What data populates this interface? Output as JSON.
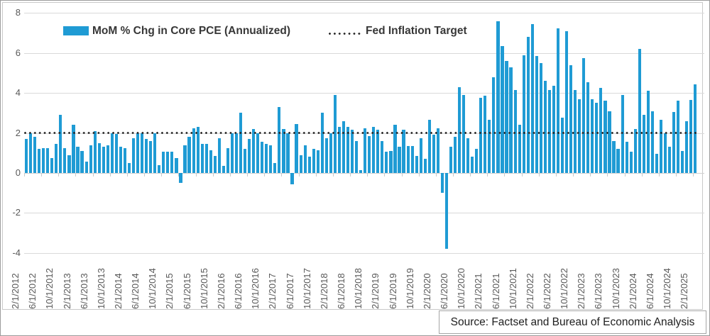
{
  "legend": {
    "series_label": "MoM % Chg in Core PCE (Annualized)",
    "target_label": "Fed Inflation Target"
  },
  "source": {
    "text": "Source: Factset and Bureau of Economic Analysis"
  },
  "chart_data": {
    "type": "bar",
    "title": "",
    "xlabel": "",
    "ylabel": "",
    "ylim": [
      -4,
      8
    ],
    "yticks": [
      8,
      6,
      4,
      2,
      0,
      -2,
      -4
    ],
    "grid": "horizontal",
    "legend_position": "top",
    "bar_color": "#1f9bd4",
    "target_color": "#262626",
    "axis_label_color": "#595959",
    "target_value": 2,
    "xtick_every": 4,
    "x": [
      "2/1/2012",
      "3/1/2012",
      "4/1/2012",
      "5/1/2012",
      "6/1/2012",
      "7/1/2012",
      "8/1/2012",
      "9/1/2012",
      "10/1/2012",
      "11/1/2012",
      "12/1/2012",
      "1/1/2013",
      "2/1/2013",
      "3/1/2013",
      "4/1/2013",
      "5/1/2013",
      "6/1/2013",
      "7/1/2013",
      "8/1/2013",
      "9/1/2013",
      "10/1/2013",
      "11/1/2013",
      "12/1/2013",
      "1/1/2014",
      "2/1/2014",
      "3/1/2014",
      "4/1/2014",
      "5/1/2014",
      "6/1/2014",
      "7/1/2014",
      "8/1/2014",
      "9/1/2014",
      "10/1/2014",
      "11/1/2014",
      "12/1/2014",
      "1/1/2015",
      "2/1/2015",
      "3/1/2015",
      "4/1/2015",
      "5/1/2015",
      "6/1/2015",
      "7/1/2015",
      "8/1/2015",
      "9/1/2015",
      "10/1/2015",
      "11/1/2015",
      "12/1/2015",
      "1/1/2016",
      "2/1/2016",
      "3/1/2016",
      "4/1/2016",
      "5/1/2016",
      "6/1/2016",
      "7/1/2016",
      "8/1/2016",
      "9/1/2016",
      "10/1/2016",
      "11/1/2016",
      "12/1/2016",
      "1/1/2017",
      "2/1/2017",
      "3/1/2017",
      "4/1/2017",
      "5/1/2017",
      "6/1/2017",
      "7/1/2017",
      "8/1/2017",
      "9/1/2017",
      "10/1/2017",
      "11/1/2017",
      "12/1/2017",
      "1/1/2018",
      "2/1/2018",
      "3/1/2018",
      "4/1/2018",
      "5/1/2018",
      "6/1/2018",
      "7/1/2018",
      "8/1/2018",
      "9/1/2018",
      "10/1/2018",
      "11/1/2018",
      "12/1/2018",
      "1/1/2019",
      "2/1/2019",
      "3/1/2019",
      "4/1/2019",
      "5/1/2019",
      "6/1/2019",
      "7/1/2019",
      "8/1/2019",
      "9/1/2019",
      "10/1/2019",
      "11/1/2019",
      "12/1/2019",
      "1/1/2020",
      "2/1/2020",
      "3/1/2020",
      "4/1/2020",
      "5/1/2020",
      "6/1/2020",
      "7/1/2020",
      "8/1/2020",
      "9/1/2020",
      "10/1/2020",
      "11/1/2020",
      "12/1/2020",
      "1/1/2021",
      "2/1/2021",
      "3/1/2021",
      "4/1/2021",
      "5/1/2021",
      "6/1/2021",
      "7/1/2021",
      "8/1/2021",
      "9/1/2021",
      "10/1/2021",
      "11/1/2021",
      "12/1/2021",
      "1/1/2022",
      "2/1/2022",
      "3/1/2022",
      "4/1/2022",
      "5/1/2022",
      "6/1/2022",
      "7/1/2022",
      "8/1/2022",
      "9/1/2022",
      "10/1/2022",
      "11/1/2022",
      "12/1/2022",
      "1/1/2023",
      "2/1/2023",
      "3/1/2023",
      "4/1/2023",
      "5/1/2023",
      "6/1/2023",
      "7/1/2023",
      "8/1/2023",
      "9/1/2023",
      "10/1/2023",
      "11/1/2023",
      "12/1/2023",
      "1/1/2024",
      "2/1/2024",
      "3/1/2024",
      "4/1/2024",
      "5/1/2024",
      "6/1/2024",
      "7/1/2024",
      "8/1/2024",
      "9/1/2024",
      "10/1/2024",
      "11/1/2024",
      "12/1/2024",
      "1/1/2025",
      "2/1/2025"
    ],
    "values": [
      1.7,
      2.0,
      1.8,
      1.2,
      1.25,
      1.25,
      0.75,
      1.45,
      2.9,
      1.25,
      0.9,
      2.4,
      1.3,
      1.1,
      0.55,
      1.4,
      2.1,
      1.5,
      1.3,
      1.4,
      2.0,
      1.95,
      1.3,
      1.25,
      0.5,
      1.75,
      2.0,
      2.0,
      1.7,
      1.6,
      2.0,
      0.4,
      1.05,
      1.05,
      1.05,
      0.75,
      -0.5,
      1.4,
      1.8,
      2.25,
      2.3,
      1.45,
      1.45,
      1.15,
      0.85,
      1.75,
      0.35,
      1.25,
      2.0,
      2.0,
      3.0,
      1.2,
      1.7,
      2.2,
      2.0,
      1.55,
      1.45,
      1.4,
      0.5,
      3.3,
      2.2,
      2.0,
      -0.55,
      2.45,
      0.9,
      1.4,
      0.8,
      1.2,
      1.15,
      3.0,
      1.75,
      2.0,
      3.9,
      2.3,
      2.6,
      2.3,
      2.15,
      1.6,
      0.15,
      2.25,
      1.85,
      2.3,
      2.15,
      1.6,
      1.05,
      1.1,
      2.4,
      1.3,
      2.15,
      1.35,
      1.35,
      0.85,
      1.75,
      0.7,
      2.65,
      1.9,
      2.25,
      -1.0,
      -3.8,
      1.3,
      1.8,
      4.3,
      3.9,
      1.75,
      0.8,
      1.2,
      3.75,
      3.85,
      2.65,
      4.8,
      7.6,
      6.35,
      5.6,
      5.3,
      4.15,
      2.4,
      5.9,
      6.8,
      7.45,
      5.85,
      5.5,
      4.6,
      4.15,
      4.35,
      7.25,
      2.75,
      7.1,
      5.4,
      4.15,
      3.7,
      5.75,
      4.55,
      3.7,
      3.5,
      4.25,
      3.6,
      3.1,
      1.6,
      1.2,
      3.9,
      1.55,
      1.05,
      2.2,
      6.2,
      2.9,
      4.1,
      3.1,
      0.95,
      2.65,
      2.0,
      1.3,
      3.05,
      3.6,
      1.1,
      2.6,
      3.65,
      4.45
    ]
  }
}
